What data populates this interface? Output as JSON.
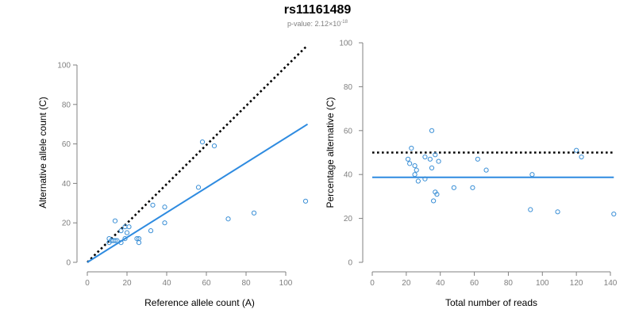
{
  "header": {
    "title": "rs11161489",
    "pvalue_prefix": "p-value: 2.12×10",
    "pvalue_exponent": "-18"
  },
  "colors": {
    "points": "#3a8fd6",
    "fit_line": "#2e8be0",
    "reference_line": "#000000",
    "axis": "#808080"
  },
  "chart_data": [
    {
      "type": "scatter",
      "xlabel": "Reference allele count (A)",
      "ylabel": "Alternative allele count (C)",
      "xlim": [
        0,
        110
      ],
      "ylim": [
        0,
        100
      ],
      "xticks": [
        0,
        20,
        40,
        60,
        80,
        100
      ],
      "yticks": [
        0,
        20,
        40,
        60,
        80,
        100
      ],
      "points": [
        {
          "x": 11,
          "y": 12
        },
        {
          "x": 11,
          "y": 10
        },
        {
          "x": 12,
          "y": 11
        },
        {
          "x": 13,
          "y": 11
        },
        {
          "x": 14,
          "y": 21
        },
        {
          "x": 14,
          "y": 11
        },
        {
          "x": 15,
          "y": 11
        },
        {
          "x": 17,
          "y": 10
        },
        {
          "x": 17,
          "y": 16
        },
        {
          "x": 19,
          "y": 12
        },
        {
          "x": 19,
          "y": 18
        },
        {
          "x": 20,
          "y": 15
        },
        {
          "x": 21,
          "y": 18
        },
        {
          "x": 25,
          "y": 12
        },
        {
          "x": 26,
          "y": 12
        },
        {
          "x": 26,
          "y": 10
        },
        {
          "x": 32,
          "y": 16
        },
        {
          "x": 33,
          "y": 29
        },
        {
          "x": 39,
          "y": 28
        },
        {
          "x": 39,
          "y": 20
        },
        {
          "x": 56,
          "y": 38
        },
        {
          "x": 58,
          "y": 61
        },
        {
          "x": 64,
          "y": 59
        },
        {
          "x": 71,
          "y": 22
        },
        {
          "x": 84,
          "y": 25
        },
        {
          "x": 110,
          "y": 31
        }
      ],
      "fit_line": [
        {
          "x": 0,
          "y": 0
        },
        {
          "x": 111,
          "y": 70
        }
      ],
      "reference_line": [
        {
          "x": 0,
          "y": 0
        },
        {
          "x": 111,
          "y": 110
        }
      ],
      "grid": false
    },
    {
      "type": "scatter",
      "xlabel": "Total number of reads",
      "ylabel": "Percentage alternative (C)",
      "xlim": [
        0,
        140
      ],
      "ylim": [
        0,
        100
      ],
      "xticks": [
        0,
        20,
        40,
        60,
        80,
        100,
        120,
        140
      ],
      "yticks": [
        0,
        20,
        40,
        60,
        80,
        100
      ],
      "points": [
        {
          "x": 21,
          "y": 47
        },
        {
          "x": 22,
          "y": 45
        },
        {
          "x": 23,
          "y": 52
        },
        {
          "x": 25,
          "y": 40
        },
        {
          "x": 25,
          "y": 44
        },
        {
          "x": 26,
          "y": 42
        },
        {
          "x": 27,
          "y": 37
        },
        {
          "x": 31,
          "y": 38
        },
        {
          "x": 31,
          "y": 48
        },
        {
          "x": 34,
          "y": 47
        },
        {
          "x": 35,
          "y": 60
        },
        {
          "x": 35,
          "y": 43
        },
        {
          "x": 36,
          "y": 28
        },
        {
          "x": 37,
          "y": 49
        },
        {
          "x": 37,
          "y": 32
        },
        {
          "x": 38,
          "y": 31
        },
        {
          "x": 39,
          "y": 46
        },
        {
          "x": 48,
          "y": 34
        },
        {
          "x": 59,
          "y": 34
        },
        {
          "x": 62,
          "y": 47
        },
        {
          "x": 67,
          "y": 42
        },
        {
          "x": 93,
          "y": 24
        },
        {
          "x": 94,
          "y": 40
        },
        {
          "x": 109,
          "y": 23
        },
        {
          "x": 120,
          "y": 51
        },
        {
          "x": 123,
          "y": 48
        },
        {
          "x": 142,
          "y": 22
        }
      ],
      "fit_line": [
        {
          "x": 0,
          "y": 38.7
        },
        {
          "x": 142,
          "y": 38.7
        }
      ],
      "reference_line": [
        {
          "x": 0,
          "y": 50
        },
        {
          "x": 142,
          "y": 50
        }
      ],
      "grid": false
    }
  ]
}
